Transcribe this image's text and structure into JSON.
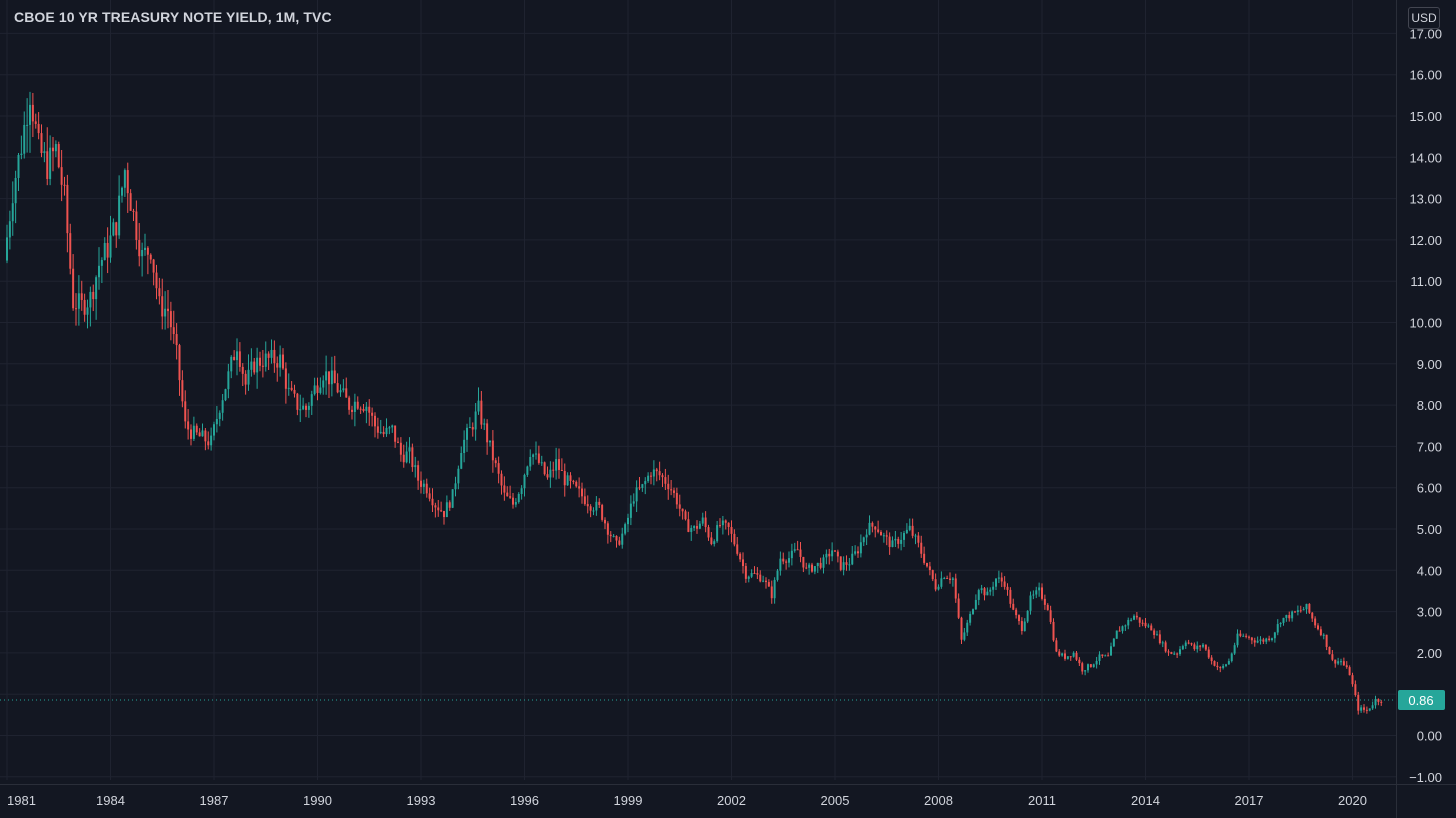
{
  "header": {
    "title": "CBOE 10 YR TREASURY NOTE YIELD, 1M, TVC",
    "currency": "USD"
  },
  "colors": {
    "background": "#131722",
    "grid": "#1f2330",
    "up": "#26a69a",
    "down": "#ef5350",
    "text": "#d1d4dc",
    "price_line": "#26a69a"
  },
  "chart_data": {
    "type": "candlestick",
    "title": "CBOE 10 YR TREASURY NOTE YIELD, 1M, TVC",
    "interval": "1M",
    "xlabel": "",
    "ylabel": "",
    "ylim": [
      -1.0,
      17.0
    ],
    "xlim": [
      1980.9,
      2021.0
    ],
    "x_ticks": [
      "1981",
      "1984",
      "1987",
      "1990",
      "1993",
      "1996",
      "1999",
      "2002",
      "2005",
      "2008",
      "2011",
      "2014",
      "2017",
      "2020"
    ],
    "y_ticks": [
      "−1.00",
      "0.00",
      "1.00",
      "2.00",
      "3.00",
      "4.00",
      "5.00",
      "6.00",
      "7.00",
      "8.00",
      "9.00",
      "10.00",
      "11.00",
      "12.00",
      "13.00",
      "14.00",
      "15.00",
      "16.00",
      "17.00"
    ],
    "grid": true,
    "last_value": 0.86,
    "last_value_label": "0.86",
    "price_path": [
      [
        1981.0,
        11.5
      ],
      [
        1981.25,
        13.2
      ],
      [
        1981.5,
        14.3
      ],
      [
        1981.75,
        15.6
      ],
      [
        1982.0,
        14.2
      ],
      [
        1982.25,
        13.8
      ],
      [
        1982.5,
        14.2
      ],
      [
        1982.75,
        13.0
      ],
      [
        1983.0,
        10.5
      ],
      [
        1983.25,
        10.4
      ],
      [
        1983.5,
        10.6
      ],
      [
        1983.75,
        11.4
      ],
      [
        1984.0,
        11.8
      ],
      [
        1984.25,
        12.4
      ],
      [
        1984.5,
        13.7
      ],
      [
        1984.75,
        12.6
      ],
      [
        1985.0,
        11.6
      ],
      [
        1985.25,
        11.8
      ],
      [
        1985.5,
        10.4
      ],
      [
        1985.75,
        10.3
      ],
      [
        1986.0,
        9.2
      ],
      [
        1986.25,
        7.5
      ],
      [
        1986.5,
        7.3
      ],
      [
        1986.75,
        7.2
      ],
      [
        1987.0,
        7.1
      ],
      [
        1987.25,
        8.0
      ],
      [
        1987.5,
        8.7
      ],
      [
        1987.75,
        9.5
      ],
      [
        1988.0,
        8.5
      ],
      [
        1988.25,
        9.0
      ],
      [
        1988.5,
        9.1
      ],
      [
        1988.75,
        9.1
      ],
      [
        1989.0,
        9.1
      ],
      [
        1989.25,
        8.3
      ],
      [
        1989.5,
        8.0
      ],
      [
        1989.75,
        7.9
      ],
      [
        1990.0,
        8.4
      ],
      [
        1990.25,
        8.8
      ],
      [
        1990.5,
        8.6
      ],
      [
        1990.75,
        8.3
      ],
      [
        1991.0,
        8.0
      ],
      [
        1991.25,
        8.1
      ],
      [
        1991.5,
        8.0
      ],
      [
        1991.75,
        7.5
      ],
      [
        1992.0,
        7.3
      ],
      [
        1992.25,
        7.4
      ],
      [
        1992.5,
        6.8
      ],
      [
        1992.75,
        6.8
      ],
      [
        1993.0,
        6.2
      ],
      [
        1993.25,
        6.0
      ],
      [
        1993.5,
        5.6
      ],
      [
        1993.75,
        5.4
      ],
      [
        1994.0,
        5.8
      ],
      [
        1994.25,
        7.0
      ],
      [
        1994.5,
        7.4
      ],
      [
        1994.75,
        7.9
      ],
      [
        1995.0,
        7.2
      ],
      [
        1995.25,
        6.5
      ],
      [
        1995.5,
        5.8
      ],
      [
        1995.75,
        5.6
      ],
      [
        1996.0,
        6.1
      ],
      [
        1996.25,
        6.9
      ],
      [
        1996.5,
        6.6
      ],
      [
        1996.75,
        6.2
      ],
      [
        1997.0,
        6.6
      ],
      [
        1997.25,
        6.2
      ],
      [
        1997.5,
        6.0
      ],
      [
        1997.75,
        5.8
      ],
      [
        1998.0,
        5.6
      ],
      [
        1998.25,
        5.5
      ],
      [
        1998.5,
        5.0
      ],
      [
        1998.75,
        4.6
      ],
      [
        1999.0,
        5.0
      ],
      [
        1999.25,
        5.8
      ],
      [
        1999.5,
        6.0
      ],
      [
        1999.75,
        6.4
      ],
      [
        2000.0,
        6.3
      ],
      [
        2000.25,
        6.1
      ],
      [
        2000.5,
        5.7
      ],
      [
        2000.75,
        5.1
      ],
      [
        2001.0,
        5.0
      ],
      [
        2001.25,
        5.2
      ],
      [
        2001.5,
        4.7
      ],
      [
        2001.75,
        5.1
      ],
      [
        2002.0,
        5.0
      ],
      [
        2002.25,
        4.5
      ],
      [
        2002.5,
        3.9
      ],
      [
        2002.75,
        3.9
      ],
      [
        2003.0,
        3.8
      ],
      [
        2003.25,
        3.4
      ],
      [
        2003.5,
        4.3
      ],
      [
        2003.75,
        4.3
      ],
      [
        2004.0,
        4.5
      ],
      [
        2004.25,
        4.0
      ],
      [
        2004.5,
        4.1
      ],
      [
        2004.75,
        4.2
      ],
      [
        2005.0,
        4.5
      ],
      [
        2005.25,
        4.1
      ],
      [
        2005.5,
        4.2
      ],
      [
        2005.75,
        4.5
      ],
      [
        2006.0,
        5.0
      ],
      [
        2006.25,
        5.1
      ],
      [
        2006.5,
        4.8
      ],
      [
        2006.75,
        4.6
      ],
      [
        2007.0,
        4.8
      ],
      [
        2007.25,
        5.0
      ],
      [
        2007.5,
        4.6
      ],
      [
        2007.75,
        4.1
      ],
      [
        2008.0,
        3.6
      ],
      [
        2008.25,
        3.9
      ],
      [
        2008.5,
        3.8
      ],
      [
        2008.75,
        2.3
      ],
      [
        2009.0,
        2.9
      ],
      [
        2009.25,
        3.6
      ],
      [
        2009.5,
        3.4
      ],
      [
        2009.75,
        3.8
      ],
      [
        2010.0,
        3.7
      ],
      [
        2010.25,
        3.0
      ],
      [
        2010.5,
        2.6
      ],
      [
        2010.75,
        3.3
      ],
      [
        2011.0,
        3.5
      ],
      [
        2011.25,
        3.1
      ],
      [
        2011.5,
        2.0
      ],
      [
        2011.75,
        1.9
      ],
      [
        2012.0,
        2.0
      ],
      [
        2012.25,
        1.6
      ],
      [
        2012.5,
        1.7
      ],
      [
        2012.75,
        1.9
      ],
      [
        2013.0,
        1.9
      ],
      [
        2013.25,
        2.5
      ],
      [
        2013.5,
        2.7
      ],
      [
        2013.75,
        2.9
      ],
      [
        2014.0,
        2.7
      ],
      [
        2014.25,
        2.6
      ],
      [
        2014.5,
        2.3
      ],
      [
        2014.75,
        2.0
      ],
      [
        2015.0,
        2.0
      ],
      [
        2015.25,
        2.3
      ],
      [
        2015.5,
        2.1
      ],
      [
        2015.75,
        2.2
      ],
      [
        2016.0,
        1.8
      ],
      [
        2016.25,
        1.6
      ],
      [
        2016.5,
        1.8
      ],
      [
        2016.75,
        2.4
      ],
      [
        2017.0,
        2.4
      ],
      [
        2017.25,
        2.3
      ],
      [
        2017.5,
        2.3
      ],
      [
        2017.75,
        2.4
      ],
      [
        2018.0,
        2.8
      ],
      [
        2018.25,
        2.9
      ],
      [
        2018.5,
        3.0
      ],
      [
        2018.75,
        3.1
      ],
      [
        2019.0,
        2.7
      ],
      [
        2019.25,
        2.4
      ],
      [
        2019.5,
        1.8
      ],
      [
        2019.75,
        1.8
      ],
      [
        2020.0,
        1.5
      ],
      [
        2020.25,
        0.65
      ],
      [
        2020.5,
        0.6
      ],
      [
        2020.75,
        0.86
      ]
    ]
  }
}
